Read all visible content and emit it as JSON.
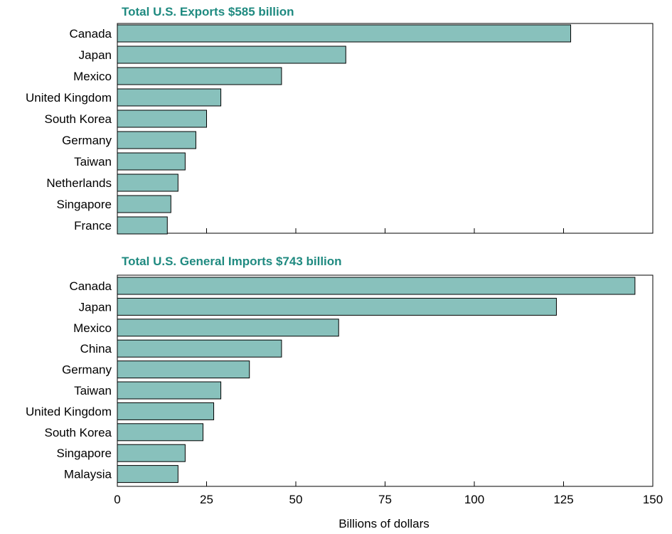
{
  "colors": {
    "bar_fill": "#88c1bc",
    "title": "#1f8a80",
    "frame": "#000000"
  },
  "chart_data": [
    {
      "type": "bar",
      "orientation": "horizontal",
      "title": "Total U.S. Exports $585 billion",
      "categories": [
        "Canada",
        "Japan",
        "Mexico",
        "United Kingdom",
        "South Korea",
        "Germany",
        "Taiwan",
        "Netherlands",
        "Singapore",
        "France"
      ],
      "values": [
        127,
        64,
        46,
        29,
        25,
        22,
        19,
        17,
        15,
        14
      ],
      "xlim": [
        0,
        150
      ],
      "xticks_labeled": false,
      "grid": false
    },
    {
      "type": "bar",
      "orientation": "horizontal",
      "title": "Total U.S. General Imports $743 billion",
      "categories": [
        "Canada",
        "Japan",
        "Mexico",
        "China",
        "Germany",
        "Taiwan",
        "United Kingdom",
        "South Korea",
        "Singapore",
        "Malaysia"
      ],
      "values": [
        145,
        123,
        62,
        46,
        37,
        29,
        27,
        24,
        19,
        17
      ],
      "xlim": [
        0,
        150
      ],
      "xticks_labeled": true,
      "grid": false
    }
  ],
  "x_axis": {
    "ticks": [
      0,
      25,
      50,
      75,
      100,
      125,
      150
    ],
    "tick_labels": [
      "0",
      "25",
      "50",
      "75",
      "100",
      "125",
      "150"
    ],
    "label": "Billions of dollars"
  }
}
